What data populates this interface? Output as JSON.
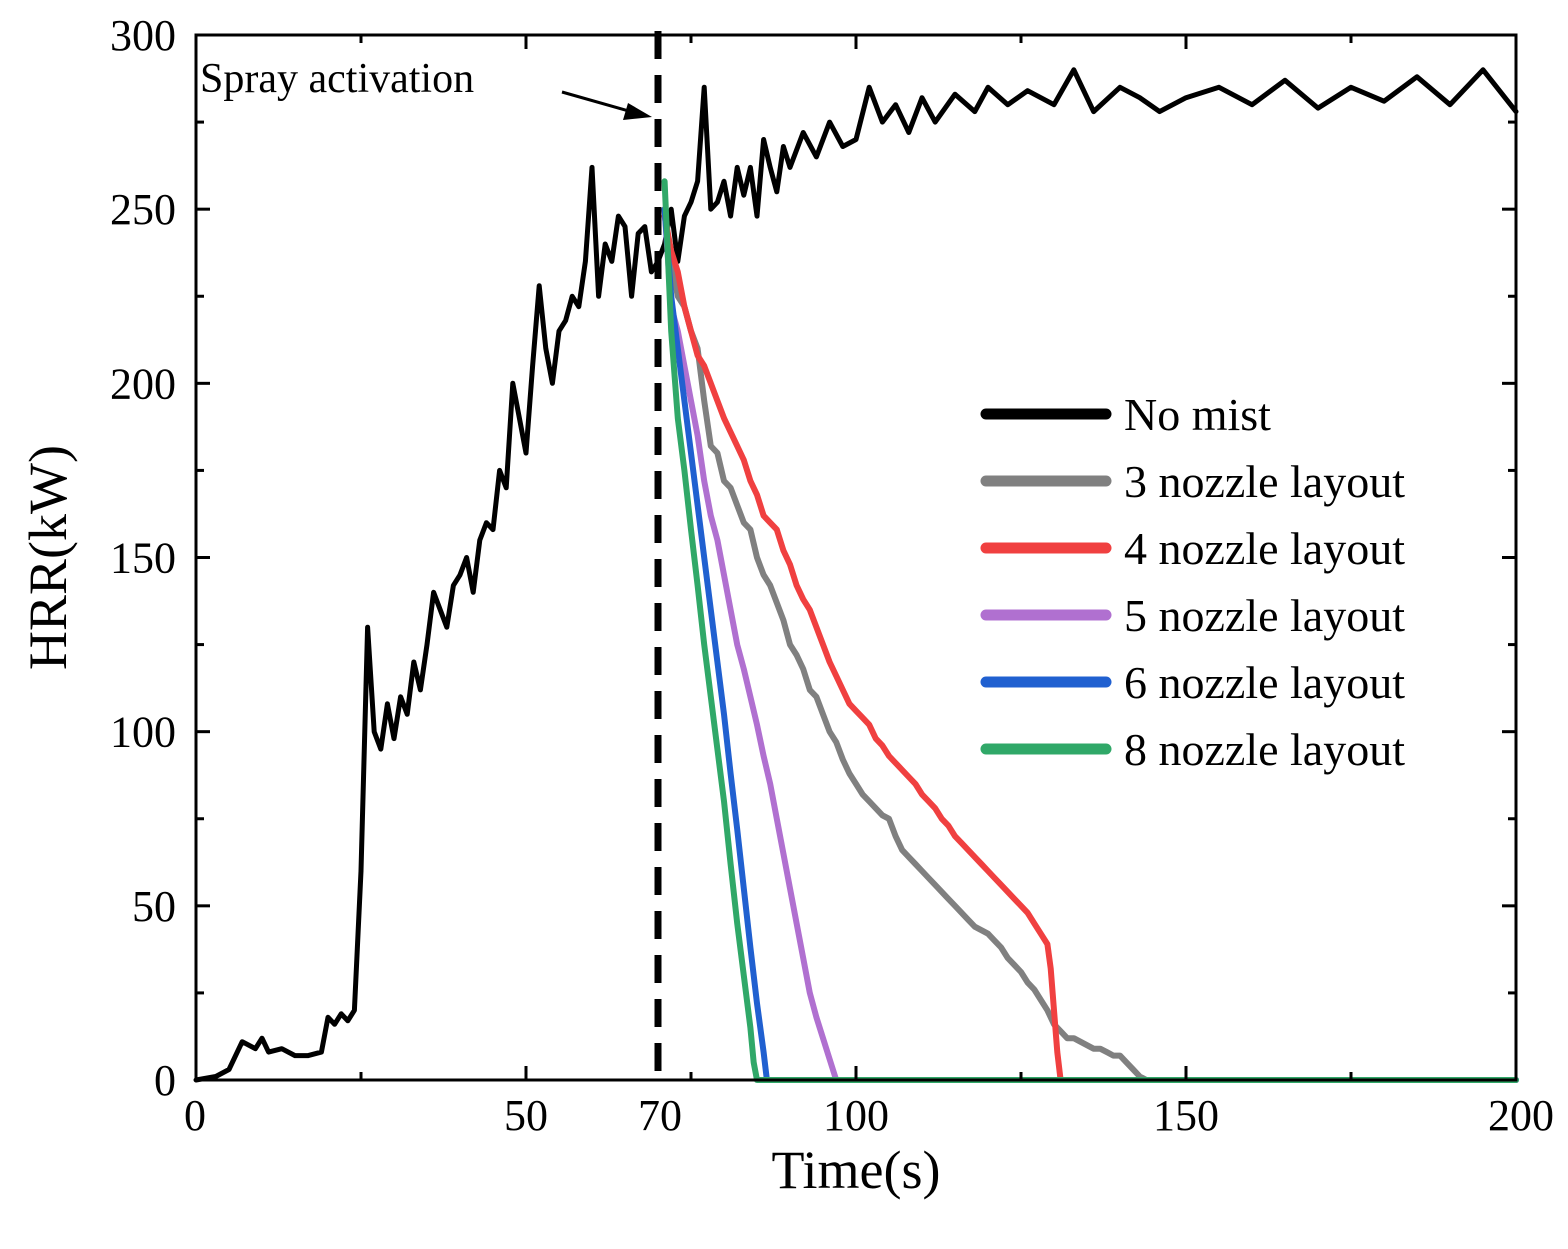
{
  "chart_data": {
    "type": "line",
    "xlabel": "Time(s)",
    "ylabel": "HRR(kW)",
    "xlim": [
      0,
      200
    ],
    "ylim": [
      0,
      300
    ],
    "xticks": [
      0,
      50,
      70,
      100,
      150,
      200
    ],
    "yticks": [
      0,
      50,
      100,
      150,
      200,
      250,
      300
    ],
    "grid": false,
    "legend_position": "right-middle",
    "annotation": {
      "text": "Spray activation",
      "x": 70
    },
    "series": [
      {
        "name": "No mist",
        "color": "#000000",
        "points": [
          [
            0,
            0
          ],
          [
            3,
            1
          ],
          [
            5,
            3
          ],
          [
            7,
            11
          ],
          [
            9,
            9
          ],
          [
            10,
            12
          ],
          [
            11,
            8
          ],
          [
            13,
            9
          ],
          [
            15,
            7
          ],
          [
            17,
            7
          ],
          [
            19,
            8
          ],
          [
            20,
            18
          ],
          [
            21,
            16
          ],
          [
            22,
            19
          ],
          [
            23,
            17
          ],
          [
            24,
            20
          ],
          [
            25,
            60
          ],
          [
            26,
            130
          ],
          [
            27,
            100
          ],
          [
            28,
            95
          ],
          [
            29,
            108
          ],
          [
            30,
            98
          ],
          [
            31,
            110
          ],
          [
            32,
            105
          ],
          [
            33,
            120
          ],
          [
            34,
            112
          ],
          [
            35,
            125
          ],
          [
            36,
            140
          ],
          [
            37,
            135
          ],
          [
            38,
            130
          ],
          [
            39,
            142
          ],
          [
            40,
            145
          ],
          [
            41,
            150
          ],
          [
            42,
            140
          ],
          [
            43,
            155
          ],
          [
            44,
            160
          ],
          [
            45,
            158
          ],
          [
            46,
            175
          ],
          [
            47,
            170
          ],
          [
            48,
            200
          ],
          [
            49,
            190
          ],
          [
            50,
            180
          ],
          [
            51,
            205
          ],
          [
            52,
            228
          ],
          [
            53,
            210
          ],
          [
            54,
            200
          ],
          [
            55,
            215
          ],
          [
            56,
            218
          ],
          [
            57,
            225
          ],
          [
            58,
            222
          ],
          [
            59,
            235
          ],
          [
            60,
            262
          ],
          [
            61,
            225
          ],
          [
            62,
            240
          ],
          [
            63,
            235
          ],
          [
            64,
            248
          ],
          [
            65,
            245
          ],
          [
            66,
            225
          ],
          [
            67,
            243
          ],
          [
            68,
            245
          ],
          [
            69,
            232
          ],
          [
            70,
            235
          ],
          [
            71,
            240
          ],
          [
            72,
            250
          ],
          [
            73,
            235
          ],
          [
            74,
            248
          ],
          [
            75,
            252
          ],
          [
            76,
            258
          ],
          [
            77,
            285
          ],
          [
            78,
            250
          ],
          [
            79,
            252
          ],
          [
            80,
            258
          ],
          [
            81,
            248
          ],
          [
            82,
            262
          ],
          [
            83,
            254
          ],
          [
            84,
            262
          ],
          [
            85,
            248
          ],
          [
            86,
            270
          ],
          [
            87,
            262
          ],
          [
            88,
            255
          ],
          [
            89,
            268
          ],
          [
            90,
            262
          ],
          [
            92,
            272
          ],
          [
            94,
            265
          ],
          [
            96,
            275
          ],
          [
            98,
            268
          ],
          [
            100,
            270
          ],
          [
            102,
            285
          ],
          [
            104,
            275
          ],
          [
            106,
            280
          ],
          [
            108,
            272
          ],
          [
            110,
            282
          ],
          [
            112,
            275
          ],
          [
            115,
            283
          ],
          [
            118,
            278
          ],
          [
            120,
            285
          ],
          [
            123,
            280
          ],
          [
            126,
            284
          ],
          [
            130,
            280
          ],
          [
            133,
            290
          ],
          [
            136,
            278
          ],
          [
            140,
            285
          ],
          [
            143,
            282
          ],
          [
            146,
            278
          ],
          [
            150,
            282
          ],
          [
            155,
            285
          ],
          [
            160,
            280
          ],
          [
            165,
            287
          ],
          [
            170,
            279
          ],
          [
            175,
            285
          ],
          [
            180,
            281
          ],
          [
            185,
            288
          ],
          [
            190,
            280
          ],
          [
            195,
            290
          ],
          [
            200,
            278
          ]
        ]
      },
      {
        "name": "3 nozzle layout",
        "color": "#808080",
        "points": [
          [
            71,
            250
          ],
          [
            72,
            235
          ],
          [
            73,
            225
          ],
          [
            74,
            222
          ],
          [
            75,
            215
          ],
          [
            76,
            210
          ],
          [
            77,
            195
          ],
          [
            78,
            182
          ],
          [
            79,
            180
          ],
          [
            80,
            172
          ],
          [
            81,
            170
          ],
          [
            82,
            165
          ],
          [
            83,
            160
          ],
          [
            84,
            158
          ],
          [
            85,
            150
          ],
          [
            86,
            145
          ],
          [
            87,
            142
          ],
          [
            88,
            137
          ],
          [
            89,
            132
          ],
          [
            90,
            125
          ],
          [
            91,
            122
          ],
          [
            92,
            118
          ],
          [
            93,
            112
          ],
          [
            94,
            110
          ],
          [
            95,
            105
          ],
          [
            96,
            100
          ],
          [
            97,
            97
          ],
          [
            98,
            92
          ],
          [
            99,
            88
          ],
          [
            100,
            85
          ],
          [
            101,
            82
          ],
          [
            102,
            80
          ],
          [
            103,
            78
          ],
          [
            104,
            76
          ],
          [
            105,
            75
          ],
          [
            106,
            70
          ],
          [
            107,
            66
          ],
          [
            108,
            64
          ],
          [
            109,
            62
          ],
          [
            110,
            60
          ],
          [
            111,
            58
          ],
          [
            112,
            56
          ],
          [
            113,
            54
          ],
          [
            114,
            52
          ],
          [
            115,
            50
          ],
          [
            116,
            48
          ],
          [
            117,
            46
          ],
          [
            118,
            44
          ],
          [
            119,
            43
          ],
          [
            120,
            42
          ],
          [
            121,
            40
          ],
          [
            122,
            38
          ],
          [
            123,
            35
          ],
          [
            124,
            33
          ],
          [
            125,
            31
          ],
          [
            126,
            28
          ],
          [
            127,
            26
          ],
          [
            128,
            23
          ],
          [
            129,
            20
          ],
          [
            130,
            16
          ],
          [
            131,
            14
          ],
          [
            132,
            12
          ],
          [
            133,
            12
          ],
          [
            134,
            11
          ],
          [
            135,
            10
          ],
          [
            136,
            9
          ],
          [
            137,
            9
          ],
          [
            138,
            8
          ],
          [
            139,
            7
          ],
          [
            140,
            7
          ],
          [
            141,
            5
          ],
          [
            142,
            3
          ],
          [
            143,
            1
          ],
          [
            144,
            0
          ],
          [
            200,
            0
          ]
        ]
      },
      {
        "name": "4 nozzle layout",
        "color": "#f04040",
        "points": [
          [
            71,
            248
          ],
          [
            72,
            238
          ],
          [
            73,
            232
          ],
          [
            74,
            222
          ],
          [
            75,
            215
          ],
          [
            76,
            208
          ],
          [
            77,
            205
          ],
          [
            78,
            200
          ],
          [
            79,
            195
          ],
          [
            80,
            190
          ],
          [
            81,
            186
          ],
          [
            82,
            182
          ],
          [
            83,
            178
          ],
          [
            84,
            172
          ],
          [
            85,
            168
          ],
          [
            86,
            162
          ],
          [
            87,
            160
          ],
          [
            88,
            158
          ],
          [
            89,
            152
          ],
          [
            90,
            148
          ],
          [
            91,
            142
          ],
          [
            92,
            138
          ],
          [
            93,
            135
          ],
          [
            94,
            130
          ],
          [
            95,
            125
          ],
          [
            96,
            120
          ],
          [
            97,
            116
          ],
          [
            98,
            112
          ],
          [
            99,
            108
          ],
          [
            100,
            106
          ],
          [
            101,
            104
          ],
          [
            102,
            102
          ],
          [
            103,
            98
          ],
          [
            104,
            96
          ],
          [
            105,
            93
          ],
          [
            106,
            91
          ],
          [
            107,
            89
          ],
          [
            108,
            87
          ],
          [
            109,
            85
          ],
          [
            110,
            82
          ],
          [
            111,
            80
          ],
          [
            112,
            78
          ],
          [
            113,
            75
          ],
          [
            114,
            73
          ],
          [
            115,
            70
          ],
          [
            116,
            68
          ],
          [
            117,
            66
          ],
          [
            118,
            64
          ],
          [
            119,
            62
          ],
          [
            120,
            60
          ],
          [
            121,
            58
          ],
          [
            122,
            56
          ],
          [
            123,
            54
          ],
          [
            124,
            52
          ],
          [
            125,
            50
          ],
          [
            126,
            48
          ],
          [
            127,
            45
          ],
          [
            128,
            42
          ],
          [
            129,
            39
          ],
          [
            129.5,
            32
          ],
          [
            130,
            20
          ],
          [
            130.5,
            8
          ],
          [
            131,
            0
          ],
          [
            200,
            0
          ]
        ]
      },
      {
        "name": "5 nozzle layout",
        "color": "#b070d0",
        "points": [
          [
            71,
            250
          ],
          [
            72,
            222
          ],
          [
            73,
            215
          ],
          [
            74,
            205
          ],
          [
            75,
            195
          ],
          [
            76,
            185
          ],
          [
            77,
            172
          ],
          [
            78,
            162
          ],
          [
            79,
            155
          ],
          [
            80,
            145
          ],
          [
            81,
            135
          ],
          [
            82,
            125
          ],
          [
            83,
            118
          ],
          [
            84,
            110
          ],
          [
            85,
            102
          ],
          [
            86,
            93
          ],
          [
            87,
            85
          ],
          [
            88,
            75
          ],
          [
            89,
            65
          ],
          [
            90,
            55
          ],
          [
            91,
            45
          ],
          [
            92,
            35
          ],
          [
            93,
            25
          ],
          [
            94,
            18
          ],
          [
            95,
            12
          ],
          [
            96,
            6
          ],
          [
            97,
            0
          ],
          [
            200,
            0
          ]
        ]
      },
      {
        "name": "6 nozzle layout",
        "color": "#2060d0",
        "points": [
          [
            71,
            250
          ],
          [
            72,
            225
          ],
          [
            73,
            210
          ],
          [
            74,
            195
          ],
          [
            75,
            180
          ],
          [
            76,
            165
          ],
          [
            77,
            150
          ],
          [
            78,
            135
          ],
          [
            79,
            120
          ],
          [
            80,
            105
          ],
          [
            81,
            88
          ],
          [
            82,
            72
          ],
          [
            83,
            55
          ],
          [
            84,
            38
          ],
          [
            85,
            22
          ],
          [
            86,
            8
          ],
          [
            86.5,
            0
          ],
          [
            200,
            0
          ]
        ]
      },
      {
        "name": "8 nozzle layout",
        "color": "#30a868",
        "points": [
          [
            71,
            258
          ],
          [
            72,
            215
          ],
          [
            73,
            190
          ],
          [
            74,
            175
          ],
          [
            75,
            158
          ],
          [
            76,
            142
          ],
          [
            77,
            125
          ],
          [
            78,
            110
          ],
          [
            79,
            95
          ],
          [
            80,
            80
          ],
          [
            81,
            62
          ],
          [
            82,
            45
          ],
          [
            83,
            30
          ],
          [
            84,
            15
          ],
          [
            84.5,
            5
          ],
          [
            85,
            0
          ],
          [
            200,
            0
          ]
        ]
      }
    ]
  }
}
